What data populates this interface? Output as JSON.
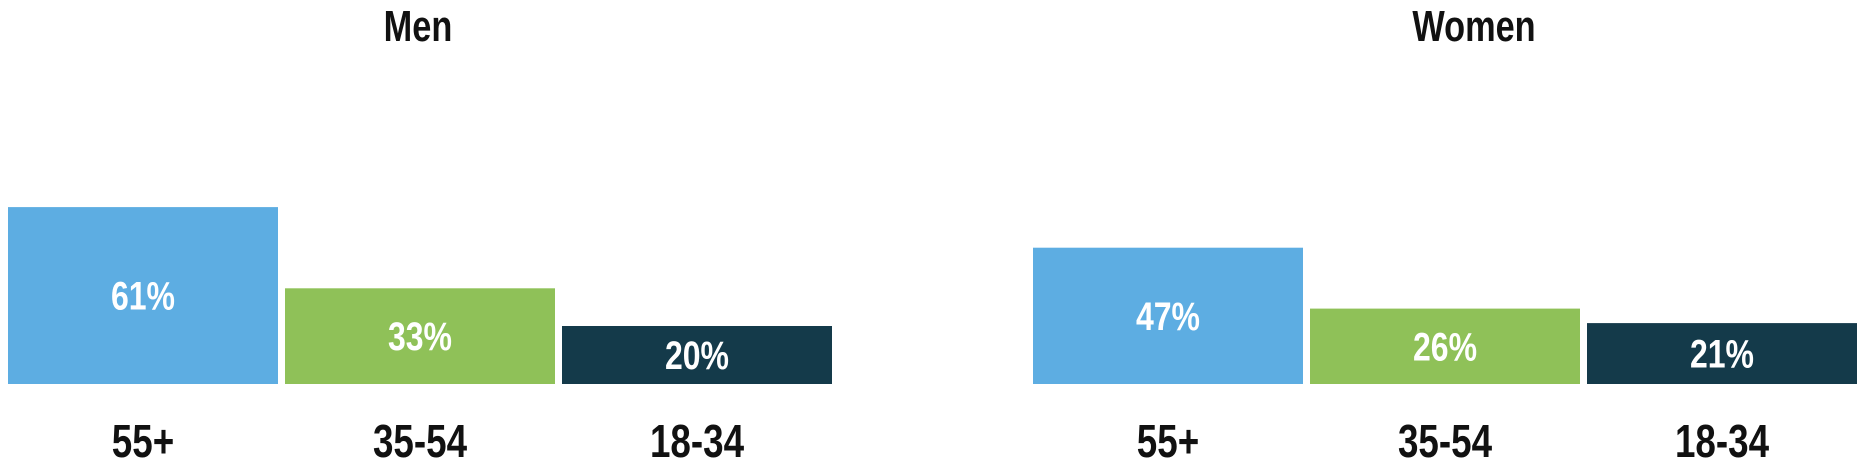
{
  "chart_data": [
    {
      "type": "bar",
      "title": "Men",
      "categories": [
        "55+",
        "35-54",
        "18-34"
      ],
      "values": [
        61,
        33,
        20
      ],
      "value_labels": [
        "61%",
        "33%",
        "20%"
      ],
      "colors": [
        "#5DADE2",
        "#8FC158",
        "#143A4A"
      ],
      "ylim": [
        0,
        100
      ]
    },
    {
      "type": "bar",
      "title": "Women",
      "categories": [
        "55+",
        "35-54",
        "18-34"
      ],
      "values": [
        47,
        26,
        21
      ],
      "value_labels": [
        "47%",
        "26%",
        "21%"
      ],
      "colors": [
        "#5DADE2",
        "#8FC158",
        "#143A4A"
      ],
      "ylim": [
        0,
        100
      ]
    }
  ]
}
